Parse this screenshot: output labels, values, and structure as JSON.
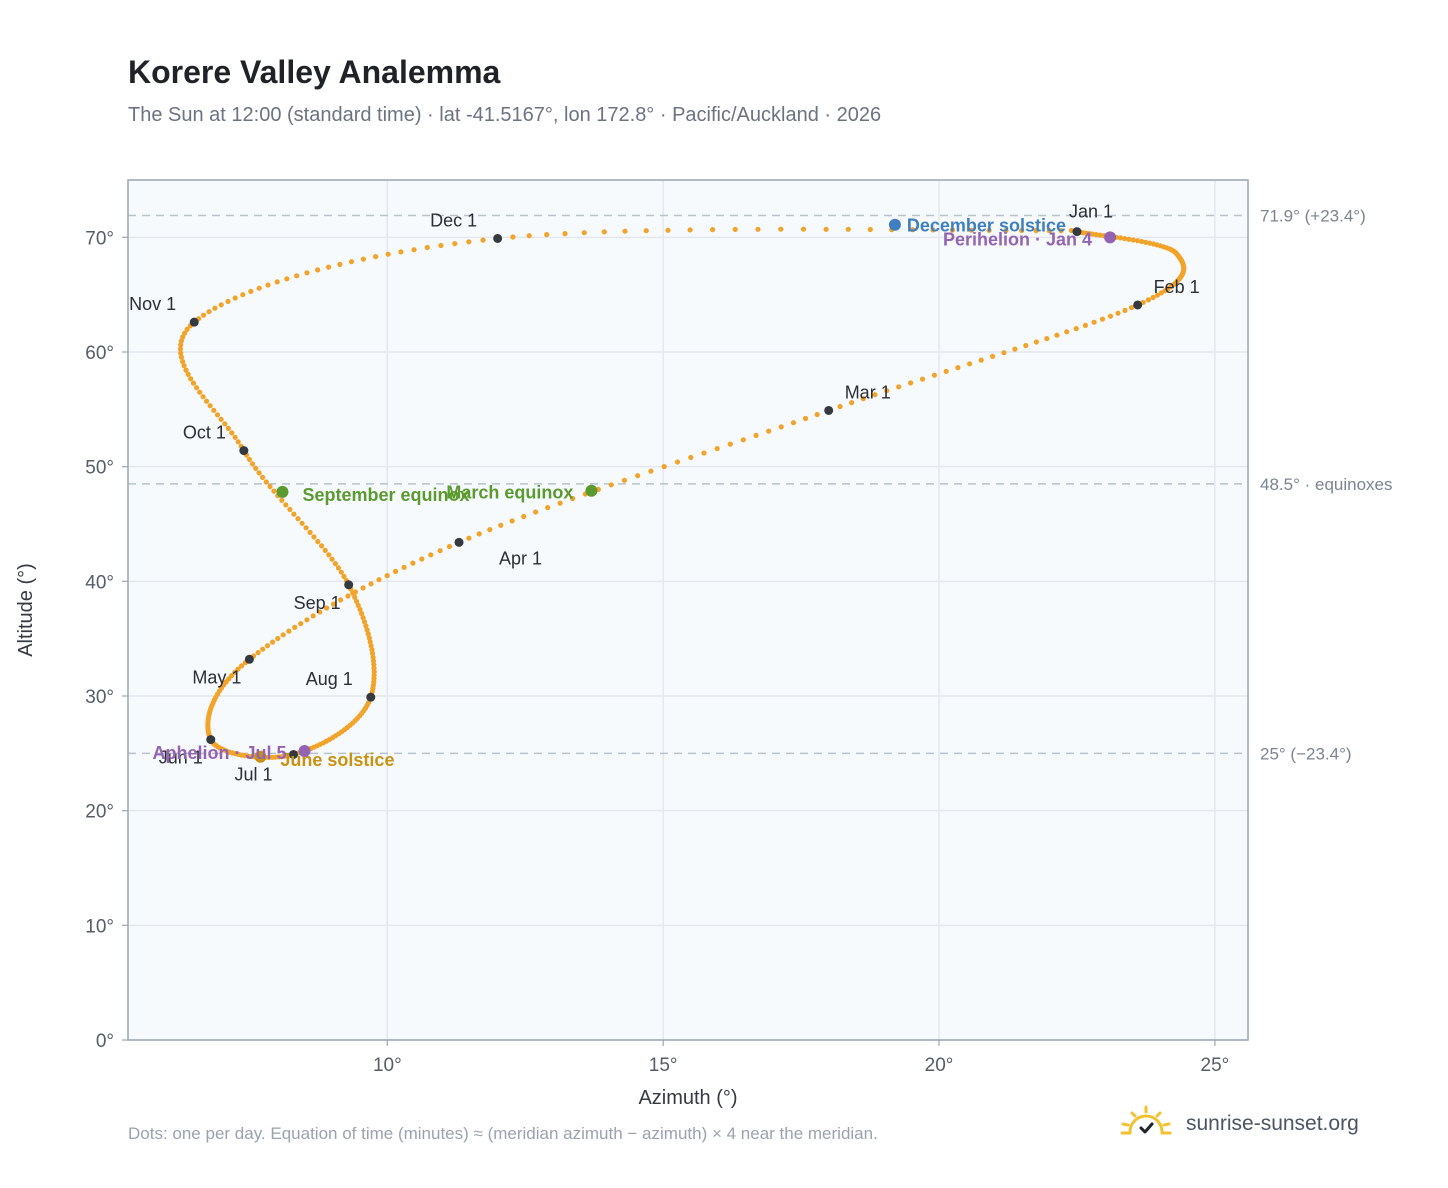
{
  "header": {
    "title": "Korere Valley Analemma",
    "subtitle": "The Sun at 12:00 (standard time) · lat -41.5167°, lon 172.8° · Pacific/Auckland · 2026"
  },
  "footer": {
    "note": "Dots: one per day. Equation of time (minutes) ≈ (meridian azimuth − azimuth) × 4 near the meridian.",
    "brand": "sunrise-sunset.org",
    "brand_icon": "sun-check-icon"
  },
  "colors": {
    "curve": "#f2a329",
    "month_marker": "#343a40",
    "solstice_december": "#3f7fbf",
    "solstice_june": "#c99212",
    "equinox": "#5a9a2e",
    "apsis": "#9464b2",
    "plot_bg": "#f7fafd",
    "grid": "#e3e8ee",
    "reference_line": "#b7c2cd"
  },
  "chart_data": {
    "type": "scatter",
    "xlabel": "Azimuth (°)",
    "ylabel": "Altitude (°)",
    "xlim": [
      5.3,
      25.6
    ],
    "ylim": [
      0,
      75
    ],
    "x_ticks": [
      10,
      15,
      20,
      25
    ],
    "x_tick_labels": [
      "10°",
      "15°",
      "20°",
      "25°"
    ],
    "y_ticks": [
      0,
      10,
      20,
      30,
      40,
      50,
      60,
      70
    ],
    "y_tick_labels": [
      "0°",
      "10°",
      "20°",
      "30°",
      "40°",
      "50°",
      "60°",
      "70°"
    ],
    "grid": true,
    "series": [
      {
        "kind": "daily_path",
        "points_per": "day",
        "path_keypoints": [
          {
            "date": "Jan 1",
            "az": 22.5,
            "alt": 70.5
          },
          {
            "date": "Jan 16",
            "az": 24.3,
            "alt": 68.6
          },
          {
            "date": "Feb 1",
            "az": 23.6,
            "alt": 64.1
          },
          {
            "date": "Mar 1",
            "az": 18.0,
            "alt": 54.9
          },
          {
            "date": "Apr 1",
            "az": 11.3,
            "alt": 43.4
          },
          {
            "date": "May 1",
            "az": 7.5,
            "alt": 33.2
          },
          {
            "date": "Jun 1",
            "az": 6.8,
            "alt": 26.2
          },
          {
            "date": "Jul 1",
            "az": 8.3,
            "alt": 24.9
          },
          {
            "date": "Aug 1",
            "az": 9.7,
            "alt": 29.9
          },
          {
            "date": "Sep 1",
            "az": 9.3,
            "alt": 39.7
          },
          {
            "date": "Oct 1",
            "az": 7.4,
            "alt": 51.4
          },
          {
            "date": "Nov 1",
            "az": 6.5,
            "alt": 62.6
          },
          {
            "date": "Dec 1",
            "az": 12.0,
            "alt": 69.9
          },
          {
            "date": "Dec 31",
            "az": 22.4,
            "alt": 70.6
          }
        ]
      }
    ],
    "month_markers": [
      {
        "label": "Jan 1",
        "az": 22.5,
        "alt": 70.5,
        "anchor": "above"
      },
      {
        "label": "Feb 1",
        "az": 23.6,
        "alt": 64.1,
        "anchor": "above-right"
      },
      {
        "label": "Mar 1",
        "az": 18.0,
        "alt": 54.9,
        "anchor": "above-right"
      },
      {
        "label": "Apr 1",
        "az": 11.3,
        "alt": 43.4,
        "anchor": "below-left"
      },
      {
        "label": "May 1",
        "az": 7.5,
        "alt": 33.2,
        "anchor": "below-left"
      },
      {
        "label": "Jun 1",
        "az": 6.8,
        "alt": 26.2,
        "anchor": "below-left"
      },
      {
        "label": "Jul 1",
        "az": 8.3,
        "alt": 24.9,
        "anchor": "below-left"
      },
      {
        "label": "Aug 1",
        "az": 9.7,
        "alt": 29.9,
        "anchor": "above-left"
      },
      {
        "label": "Sep 1",
        "az": 9.3,
        "alt": 39.7,
        "anchor": "below-left"
      },
      {
        "label": "Oct 1",
        "az": 7.4,
        "alt": 51.4,
        "anchor": "above-left"
      },
      {
        "label": "Nov 1",
        "az": 6.5,
        "alt": 62.6,
        "anchor": "above-left"
      },
      {
        "label": "Dec 1",
        "az": 12.0,
        "alt": 69.9,
        "anchor": "above-left"
      }
    ],
    "events": [
      {
        "label": "December solstice",
        "az": 19.2,
        "alt": 71.1,
        "color_key": "solstice_december"
      },
      {
        "label": "Perihelion · Jan 4",
        "az": 23.1,
        "alt": 70.0,
        "color_key": "apsis"
      },
      {
        "label": "March equinox",
        "az": 13.7,
        "alt": 47.9,
        "color_key": "equinox"
      },
      {
        "label": "September equinox",
        "az": 8.1,
        "alt": 47.8,
        "color_key": "equinox"
      },
      {
        "label": "June solstice",
        "az": 7.7,
        "alt": 24.7,
        "color_key": "solstice_june"
      },
      {
        "label": "Aphelion · Jul 5",
        "az": 8.5,
        "alt": 25.2,
        "color_key": "apsis"
      }
    ],
    "reference_lines": [
      {
        "alt": 71.9,
        "label": "71.9° (+23.4°)"
      },
      {
        "alt": 48.5,
        "label": "48.5° · equinoxes"
      },
      {
        "alt": 25.0,
        "label": "25° (−23.4°)"
      }
    ]
  }
}
